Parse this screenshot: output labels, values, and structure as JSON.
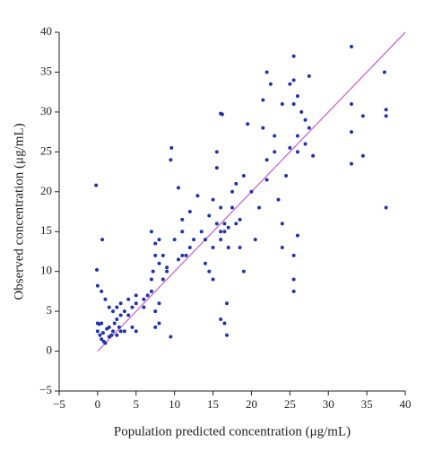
{
  "chart_data": {
    "type": "scatter",
    "x_label": "Population predicted concentration (μg/mL)",
    "y_label": "Observed concentration (μg/mL)",
    "color": "#2233aa",
    "x": [
      -0.2,
      -0.1,
      0,
      0.5,
      0.6,
      0,
      0.2,
      0.5,
      0,
      0.3,
      0.5,
      0.8,
      1,
      0.7,
      1.2,
      1.5,
      1.8,
      2,
      1.5,
      2.2,
      2.5,
      2.8,
      3,
      2.5,
      1,
      1.5,
      2,
      2.5,
      3,
      3,
      3.5,
      4,
      4,
      4.5,
      5,
      5,
      4.5,
      5,
      3.5,
      6,
      6,
      6.5,
      7,
      7,
      7.2,
      7.5,
      7.5,
      8,
      7,
      8,
      8.5,
      8.5,
      9,
      9,
      8,
      7.5,
      8,
      7.5,
      9.5,
      9.5,
      9.6,
      10.5,
      10,
      10.5,
      11,
      11,
      11,
      11.5,
      12,
      12,
      12.5,
      13,
      13.5,
      14,
      14,
      14.5,
      15,
      15,
      14.5,
      15,
      15.5,
      15.5,
      15.5,
      16,
      16.2,
      16,
      16,
      16,
      16.5,
      16.5,
      17,
      17,
      16,
      16.5,
      16.8,
      16.8,
      17.5,
      17.5,
      18,
      18,
      18.5,
      18.5,
      19,
      19,
      19.5,
      20,
      20.5,
      21,
      21.5,
      21.5,
      22,
      22,
      22.5,
      22,
      23,
      23,
      23.5,
      24,
      24,
      24,
      24.5,
      25,
      25,
      25.5,
      25.5,
      25.5,
      26,
      26,
      26,
      26.5,
      25.5,
      25.5,
      25.5,
      26,
      27,
      27,
      27.5,
      27.5,
      28,
      33,
      33,
      33,
      33,
      34.5,
      34.5,
      37.3,
      37.5,
      37.5,
      37.5
    ],
    "values": [
      20.8,
      10.2,
      8.2,
      7.5,
      14,
      3.5,
      3.4,
      3.5,
      2.5,
      2,
      1.5,
      1.2,
      1,
      2.3,
      2.8,
      3,
      2,
      2.5,
      1.8,
      3.5,
      4,
      3,
      2.5,
      2,
      6.5,
      5.5,
      5,
      5.5,
      4.5,
      6,
      5,
      4.5,
      6.5,
      5.5,
      6,
      7,
      3,
      2.5,
      2.5,
      5.5,
      6.5,
      7,
      7.5,
      9,
      10,
      12,
      13.5,
      14,
      15,
      11,
      9,
      12,
      10,
      10.5,
      6,
      5,
      3.5,
      3,
      1.8,
      24,
      25.5,
      20.5,
      14,
      11.5,
      12,
      15,
      16.5,
      12,
      13,
      17.5,
      14,
      19.5,
      15,
      14,
      11,
      10,
      9,
      13,
      17,
      19,
      16,
      25,
      23,
      29.8,
      29.7,
      18,
      15,
      14,
      15,
      16,
      15.5,
      13,
      4,
      3.5,
      6,
      2,
      20,
      18,
      21,
      16,
      16.5,
      13,
      10,
      22,
      28.5,
      20,
      14,
      18,
      31.5,
      28,
      35,
      24,
      33.5,
      21.5,
      25,
      27,
      19,
      31,
      16,
      13,
      22,
      33.5,
      25.5,
      31,
      37,
      34,
      32,
      27,
      25,
      30,
      12,
      9,
      7.5,
      14.5,
      29,
      26,
      34.5,
      28,
      24.5,
      38.2,
      31,
      27.5,
      23.5,
      29.5,
      24.5,
      35,
      30.3,
      29.5,
      18
    ],
    "reference_line": {
      "x": [
        0,
        40
      ],
      "y": [
        0,
        40
      ],
      "color": "#cc66cc"
    },
    "xlim": [
      -5,
      40
    ],
    "ylim": [
      -5,
      40
    ],
    "xticks": [
      {
        "value": -5,
        "label": "−5"
      },
      0,
      5,
      10,
      15,
      20,
      25,
      30,
      35,
      40
    ],
    "yticks": [
      {
        "value": -5,
        "label": "−5"
      },
      0,
      5,
      10,
      15,
      20,
      25,
      30,
      35,
      40
    ]
  }
}
